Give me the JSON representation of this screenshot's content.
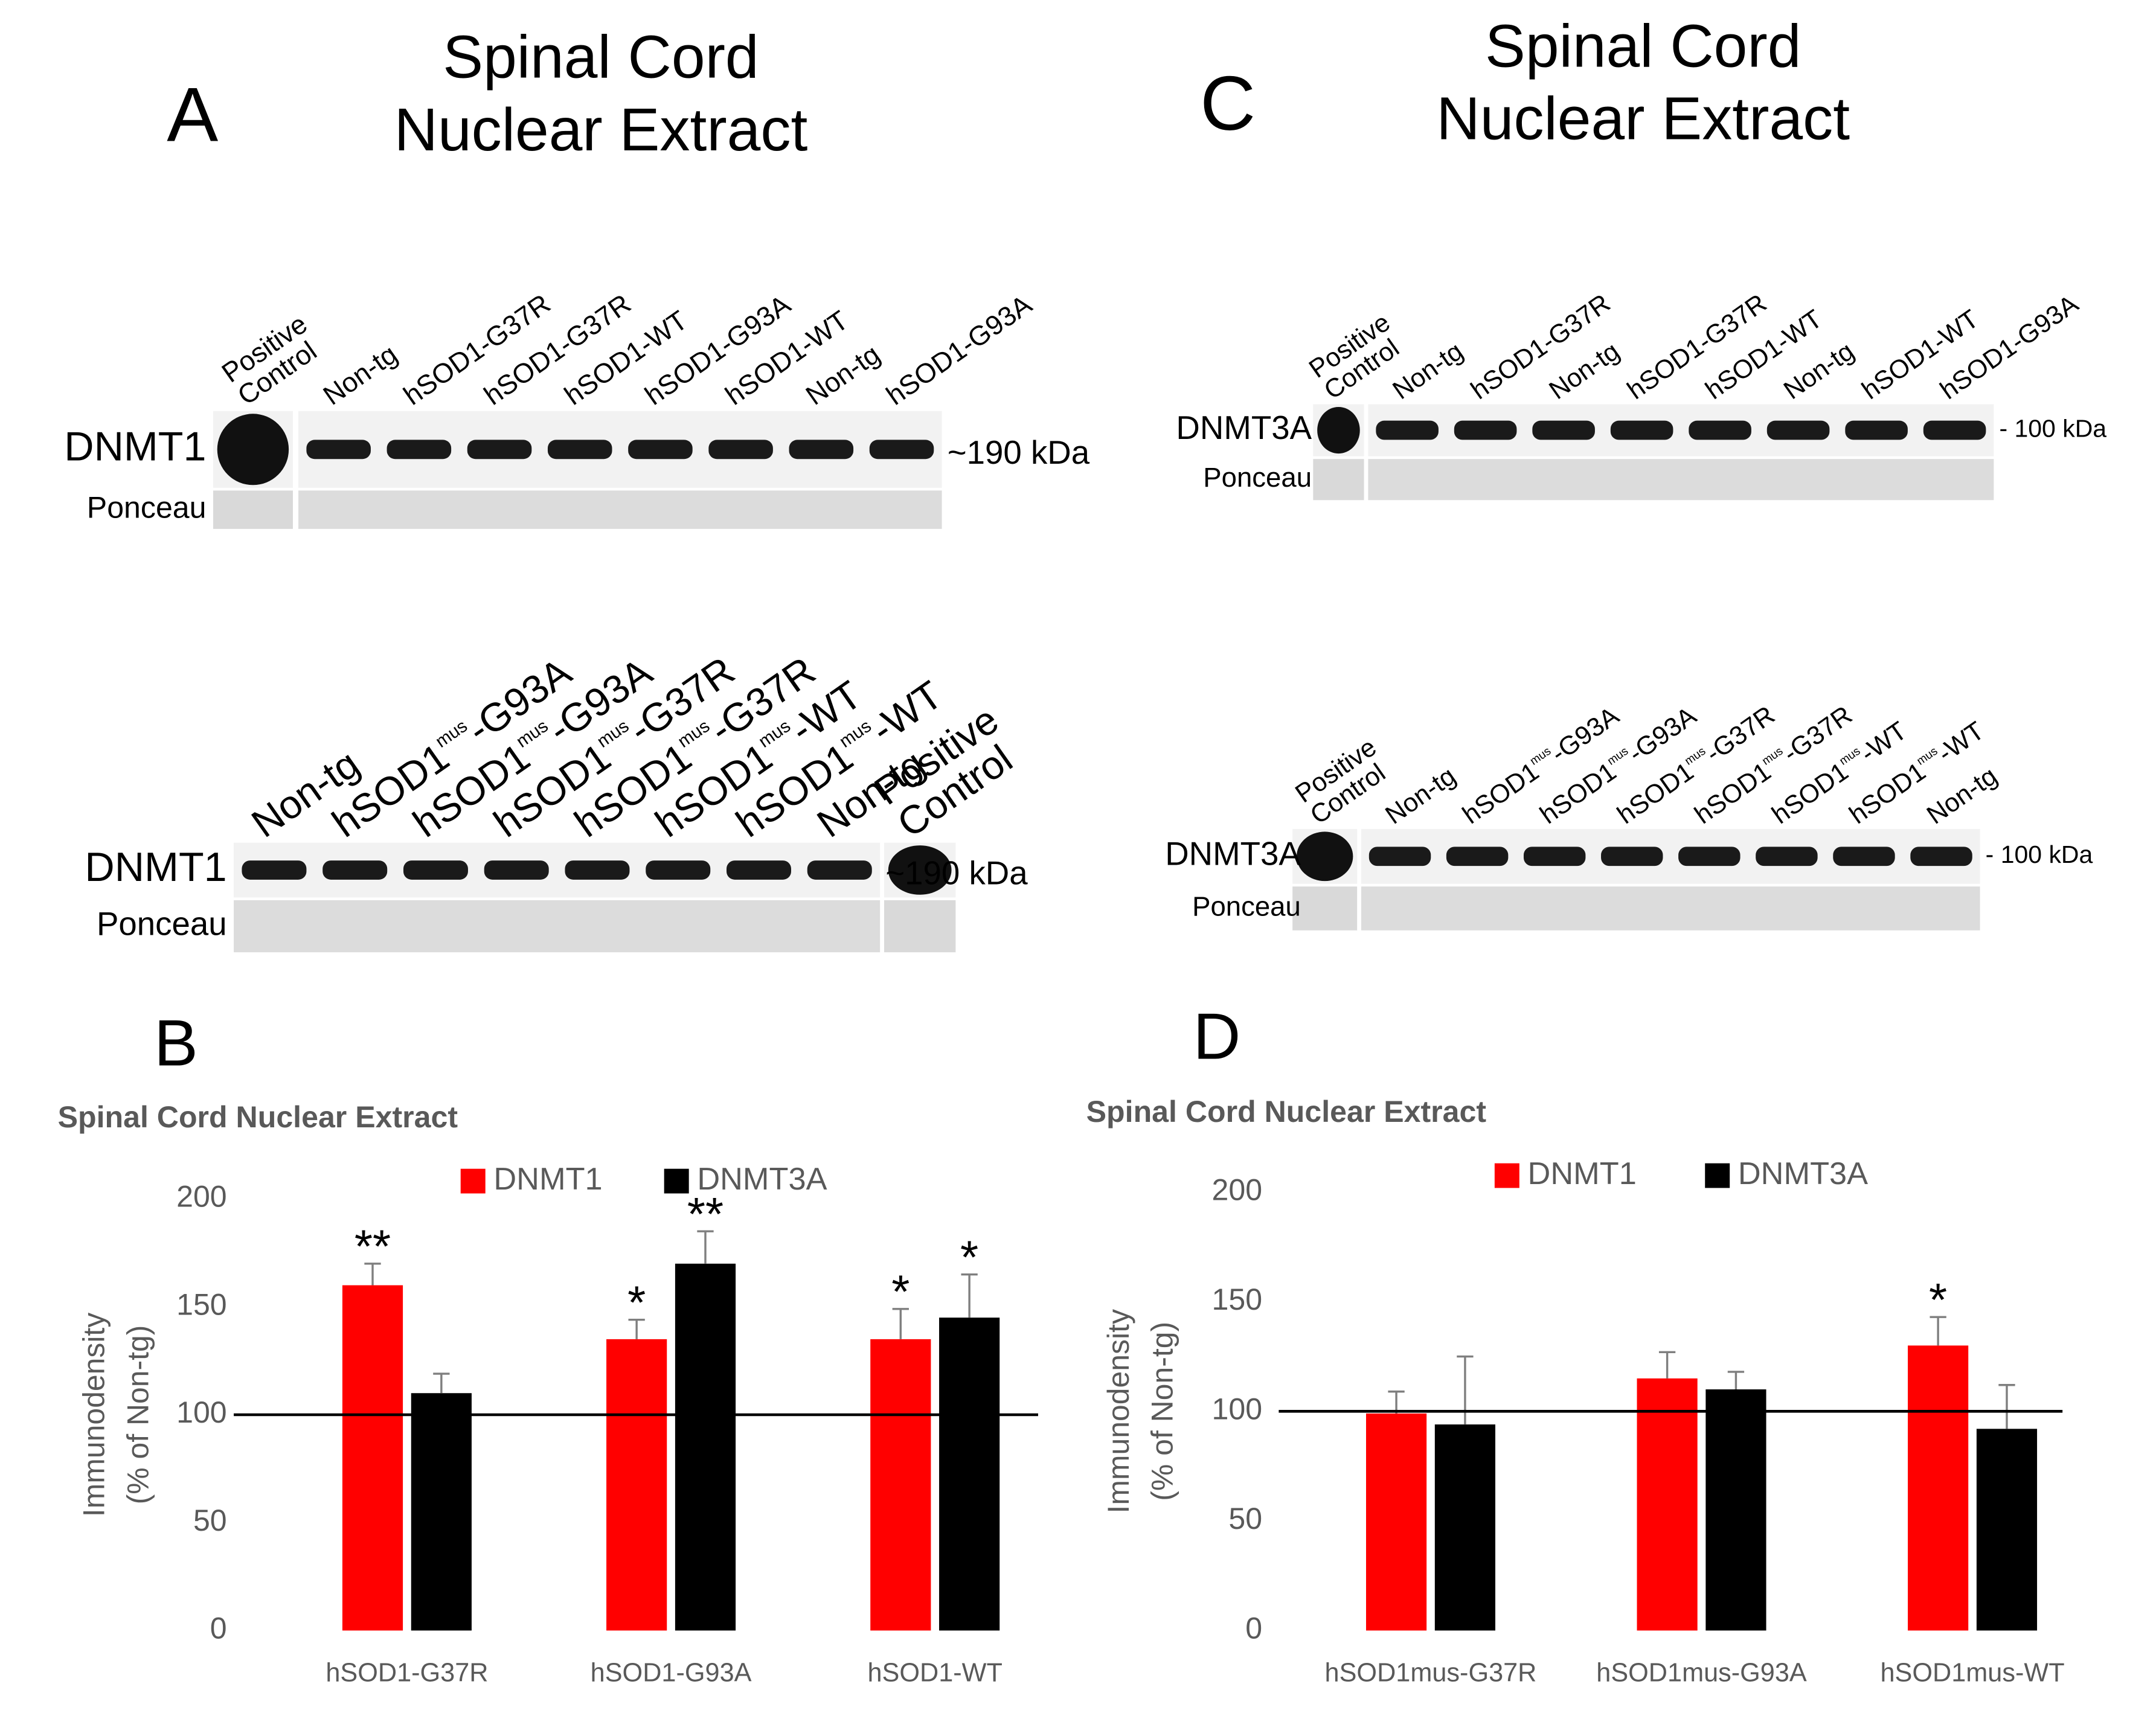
{
  "panels": [
    {
      "label": "A",
      "title": [
        "Spinal Cord",
        "Nuclear Extract"
      ],
      "blots": [
        {
          "lanes": [
            [
              "Positive",
              "Control"
            ],
            "Non-tg",
            "hSOD1-G37R",
            "hSOD1-G37R",
            "hSOD1-WT",
            "hSOD1-G93A",
            "hSOD1-WT",
            "Non-tg",
            "hSOD1-G93A"
          ],
          "protein": "DNMT1",
          "loading": "Ponceau",
          "size": "~190 kDa"
        },
        {
          "lanes": [
            "Non-tg",
            {
              "base": "hSOD1",
              "sup": "mus",
              "suffix": "-G93A"
            },
            {
              "base": "hSOD1",
              "sup": "mus",
              "suffix": "-G93A"
            },
            {
              "base": "hSOD1",
              "sup": "mus",
              "suffix": "-G37R"
            },
            {
              "base": "hSOD1",
              "sup": "mus",
              "suffix": "-G37R"
            },
            {
              "base": "hSOD1",
              "sup": "mus",
              "suffix": "-WT"
            },
            {
              "base": "hSOD1",
              "sup": "mus",
              "suffix": "-WT"
            },
            "Non-tg",
            [
              "Positive",
              "Control"
            ]
          ],
          "protein": "DNMT1",
          "loading": "Ponceau",
          "size": "~190 kDa"
        }
      ]
    },
    {
      "label": "C",
      "title": [
        "Spinal Cord",
        "Nuclear Extract"
      ],
      "blots": [
        {
          "lanes": [
            [
              "Positive",
              "Control"
            ],
            "Non-tg",
            "hSOD1-G37R",
            "Non-tg",
            "hSOD1-G37R",
            "hSOD1-WT",
            "Non-tg",
            "hSOD1-WT",
            "hSOD1-G93A"
          ],
          "protein": "DNMT3A",
          "loading": "Ponceau",
          "size": "- 100 kDa"
        },
        {
          "lanes": [
            [
              "Positive",
              "Control"
            ],
            "Non-tg",
            {
              "base": "hSOD1",
              "sup": "mus",
              "suffix": "-G93A"
            },
            {
              "base": "hSOD1",
              "sup": "mus",
              "suffix": "-G93A"
            },
            {
              "base": "hSOD1",
              "sup": "mus",
              "suffix": "-G37R"
            },
            {
              "base": "hSOD1",
              "sup": "mus",
              "suffix": "-G37R"
            },
            {
              "base": "hSOD1",
              "sup": "mus",
              "suffix": "-WT"
            },
            {
              "base": "hSOD1",
              "sup": "mus",
              "suffix": "-WT"
            },
            "Non-tg"
          ],
          "protein": "DNMT3A",
          "loading": "Ponceau",
          "size": "- 100 kDa"
        }
      ]
    }
  ],
  "chart_data": [
    {
      "type": "bar",
      "panel_label": "B",
      "title": "Spinal Cord Nuclear Extract",
      "categories": [
        "hSOD1-G37R",
        "hSOD1-G93A",
        "hSOD1-WT"
      ],
      "series": [
        {
          "name": "DNMT1",
          "color": "#ff0000",
          "values": [
            160,
            135,
            135
          ],
          "errors": [
            10,
            9,
            14
          ],
          "annotations": [
            "**",
            "*",
            "*"
          ]
        },
        {
          "name": "DNMT3A",
          "color": "#000000",
          "values": [
            110,
            170,
            145
          ],
          "errors": [
            9,
            15,
            20
          ],
          "annotations": [
            null,
            "**",
            "*"
          ]
        }
      ],
      "ylabel": [
        "Immunodensity",
        "(% of Non-tg)"
      ],
      "ylim": [
        0,
        200
      ],
      "yticks": [
        0,
        50,
        100,
        150,
        200
      ],
      "reference_line": 100,
      "legend": "top"
    },
    {
      "type": "bar",
      "panel_label": "D",
      "title": "Spinal Cord Nuclear Extract",
      "categories": [
        "hSOD1mus-G37R",
        "hSOD1mus-G93A",
        "hSOD1mus-WT"
      ],
      "series": [
        {
          "name": "DNMT1",
          "color": "#ff0000",
          "values": [
            99,
            115,
            130
          ],
          "errors": [
            10,
            12,
            13
          ],
          "annotations": [
            null,
            null,
            "*"
          ]
        },
        {
          "name": "DNMT3A",
          "color": "#000000",
          "values": [
            94,
            110,
            92
          ],
          "errors": [
            31,
            8,
            20
          ],
          "annotations": [
            null,
            null,
            null
          ]
        }
      ],
      "ylabel": [
        "Immunodensity",
        "(% of Non-tg)"
      ],
      "ylim": [
        0,
        200
      ],
      "yticks": [
        0,
        50,
        100,
        150,
        200
      ],
      "reference_line": 100,
      "legend": "top"
    }
  ]
}
